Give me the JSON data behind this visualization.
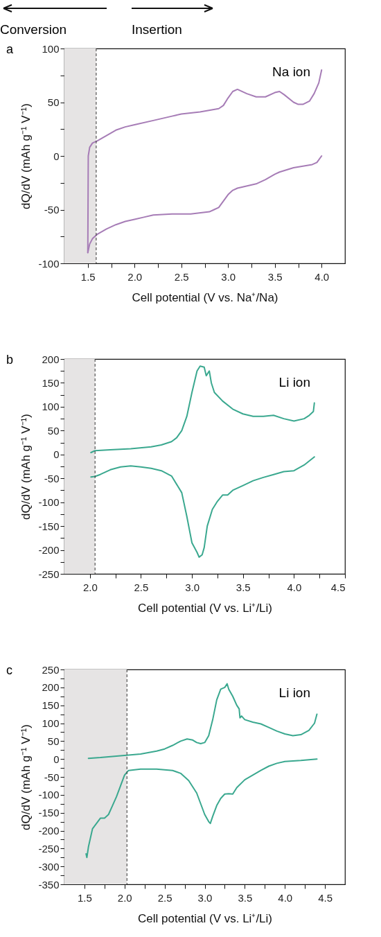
{
  "chart_data": [
    {
      "type": "line",
      "xlabel": "Cell potential (V vs. Na⁺/Na)",
      "ylabel": "dQ/dV (mAh g⁻¹ V⁻¹)",
      "annotations": [
        "a",
        "Na ion",
        "Conversion",
        "Insertion"
      ],
      "xlim": [
        1.25,
        4.25
      ],
      "ylim": [
        -100,
        100
      ],
      "xticks": [
        {
          "value": 1.5,
          "label": "1.5"
        },
        {
          "value": 1.75,
          "label": null
        },
        {
          "value": 2,
          "label": "2.0"
        },
        {
          "value": 2.25,
          "label": null
        },
        {
          "value": 2.5,
          "label": "2.5"
        },
        {
          "value": 2.75,
          "label": null
        },
        {
          "value": 3,
          "label": "3.0"
        },
        {
          "value": 3.25,
          "label": null
        },
        {
          "value": 3.5,
          "label": "3.5"
        },
        {
          "value": 3.75,
          "label": null
        },
        {
          "value": 4,
          "label": "4.0"
        }
      ],
      "yticks": [
        -100,
        {
          "value": -75,
          "label": null
        },
        -50,
        {
          "value": -25,
          "label": null
        },
        0,
        {
          "value": 25,
          "label": null
        },
        50,
        {
          "value": 75,
          "label": null
        },
        100
      ],
      "bands": [
        {
          "axis": "x",
          "from": 1.25,
          "to": 1.59,
          "color": "#e6e4e4"
        }
      ],
      "ref_lines": [
        {
          "axis": "x",
          "value": 1.59,
          "line_style": "dashed",
          "color": "#333333"
        }
      ],
      "series": [
        {
          "color": "#a67cb6",
          "x": [
            1.5,
            1.505,
            1.52,
            1.55,
            1.6,
            1.7,
            1.8,
            1.9,
            2.0,
            2.2,
            2.4,
            2.5,
            2.7,
            2.9,
            2.95,
            3.0,
            3.05,
            3.1,
            3.2,
            3.3,
            3.4,
            3.5,
            3.55,
            3.6,
            3.7,
            3.75,
            3.8,
            3.87,
            3.92,
            3.97,
            4.0
          ],
          "values": [
            -90,
            0,
            8,
            12,
            14,
            19,
            24,
            27,
            29,
            33,
            37,
            39,
            41,
            44,
            47,
            54,
            60,
            62,
            58,
            55,
            55,
            59,
            60,
            57,
            50,
            48,
            48,
            51,
            58,
            68,
            80
          ]
        },
        {
          "color": "#a67cb6",
          "x": [
            1.5,
            1.52,
            1.55,
            1.6,
            1.7,
            1.8,
            1.9,
            2.0,
            2.1,
            2.2,
            2.4,
            2.6,
            2.8,
            2.85,
            2.9,
            2.95,
            3.0,
            3.05,
            3.1,
            3.3,
            3.4,
            3.5,
            3.55,
            3.7,
            3.9,
            3.95,
            4.0
          ],
          "values": [
            -90,
            -82,
            -77,
            -73,
            -68,
            -64,
            -61,
            -59,
            -57,
            -55,
            -54,
            -54,
            -52,
            -50,
            -48,
            -42,
            -36,
            -32,
            -30,
            -26,
            -22,
            -17,
            -15,
            -11,
            -8,
            -6,
            0
          ]
        }
      ]
    },
    {
      "type": "line",
      "xlabel": "Cell potential (V vs. Li⁺/Li)",
      "ylabel": "dQ/dV (mAh g⁻¹ V⁻¹)",
      "annotations": [
        "b",
        "Li ion"
      ],
      "xlim": [
        1.75,
        4.5
      ],
      "ylim": [
        -250,
        200
      ],
      "xticks": [
        {
          "value": 2,
          "label": "2.0"
        },
        {
          "value": 2.25,
          "label": null
        },
        {
          "value": 2.5,
          "label": "2.5"
        },
        {
          "value": 2.75,
          "label": null
        },
        {
          "value": 3,
          "label": "3.0"
        },
        {
          "value": 3.25,
          "label": null
        },
        {
          "value": 3.5,
          "label": "3.5"
        },
        {
          "value": 3.75,
          "label": null
        },
        {
          "value": 4,
          "label": "4.0"
        },
        {
          "value": 4.25,
          "label": null
        },
        {
          "value": 4.5,
          "label": "4.5"
        }
      ],
      "yticks": [
        -250,
        {
          "value": -225,
          "label": null
        },
        -200,
        {
          "value": -175,
          "label": null
        },
        -150,
        {
          "value": -125,
          "label": null
        },
        -100,
        {
          "value": -75,
          "label": null
        },
        -50,
        {
          "value": -25,
          "label": null
        },
        0,
        {
          "value": 25,
          "label": null
        },
        50,
        {
          "value": 75,
          "label": null
        },
        100,
        {
          "value": 125,
          "label": null
        },
        150,
        {
          "value": 175,
          "label": null
        },
        200
      ],
      "bands": [
        {
          "axis": "x",
          "from": 1.75,
          "to": 2.05,
          "color": "#e6e4e4"
        }
      ],
      "ref_lines": [
        {
          "axis": "x",
          "value": 2.05,
          "line_style": "dashed",
          "color": "#333333"
        }
      ],
      "series": [
        {
          "color": "#3aa88f",
          "x": [
            2.01,
            2.05,
            2.2,
            2.4,
            2.6,
            2.7,
            2.8,
            2.85,
            2.9,
            2.95,
            3.0,
            3.05,
            3.08,
            3.12,
            3.14,
            3.17,
            3.19,
            3.22,
            3.3,
            3.4,
            3.5,
            3.6,
            3.7,
            3.8,
            3.9,
            4.0,
            4.1,
            4.15,
            4.19,
            4.2
          ],
          "values": [
            4,
            8,
            10,
            12,
            16,
            20,
            27,
            35,
            50,
            80,
            130,
            175,
            185,
            183,
            165,
            175,
            150,
            130,
            112,
            95,
            85,
            80,
            80,
            82,
            75,
            70,
            75,
            82,
            90,
            108
          ]
        },
        {
          "color": "#3aa88f",
          "x": [
            2.01,
            2.05,
            2.1,
            2.2,
            2.3,
            2.4,
            2.5,
            2.6,
            2.7,
            2.8,
            2.9,
            2.95,
            3.0,
            3.05,
            3.07,
            3.1,
            3.12,
            3.15,
            3.2,
            3.25,
            3.3,
            3.35,
            3.4,
            3.5,
            3.6,
            3.7,
            3.8,
            3.9,
            4.0,
            4.1,
            4.2
          ],
          "values": [
            -47,
            -46,
            -42,
            -32,
            -26,
            -24,
            -26,
            -29,
            -34,
            -45,
            -80,
            -130,
            -185,
            -205,
            -215,
            -210,
            -195,
            -150,
            -115,
            -98,
            -85,
            -85,
            -75,
            -65,
            -55,
            -48,
            -42,
            -36,
            -34,
            -22,
            -5
          ]
        }
      ]
    },
    {
      "type": "line",
      "xlabel": "Cell potential (V vs. Li⁺/Li)",
      "ylabel": "dQ/dV (mAh g⁻¹ V⁻¹)",
      "annotations": [
        "c",
        "Li ion"
      ],
      "xlim": [
        1.25,
        4.75
      ],
      "ylim": [
        -350,
        250
      ],
      "xticks": [
        {
          "value": 1.5,
          "label": "1.5"
        },
        {
          "value": 1.75,
          "label": null
        },
        {
          "value": 2,
          "label": "2.0"
        },
        {
          "value": 2.25,
          "label": null
        },
        {
          "value": 2.5,
          "label": "2.5"
        },
        {
          "value": 2.75,
          "label": null
        },
        {
          "value": 3,
          "label": "3.0"
        },
        {
          "value": 3.25,
          "label": null
        },
        {
          "value": 3.5,
          "label": "3.5"
        },
        {
          "value": 3.75,
          "label": null
        },
        {
          "value": 4,
          "label": "4.0"
        },
        {
          "value": 4.25,
          "label": null
        },
        {
          "value": 4.5,
          "label": "4.5"
        }
      ],
      "yticks": [
        -350,
        {
          "value": -325,
          "label": null
        },
        -300,
        {
          "value": -275,
          "label": null
        },
        -250,
        {
          "value": -225,
          "label": null
        },
        -200,
        {
          "value": -175,
          "label": null
        },
        -150,
        {
          "value": -125,
          "label": null
        },
        -100,
        {
          "value": -75,
          "label": null
        },
        -50,
        {
          "value": -25,
          "label": null
        },
        0,
        {
          "value": 25,
          "label": null
        },
        50,
        {
          "value": 75,
          "label": null
        },
        100,
        {
          "value": 125,
          "label": null
        },
        150,
        {
          "value": 175,
          "label": null
        },
        200,
        {
          "value": 225,
          "label": null
        },
        250
      ],
      "bands": [
        {
          "axis": "x",
          "from": 1.25,
          "to": 2.03,
          "color": "#e6e4e4"
        }
      ],
      "ref_lines": [
        {
          "axis": "x",
          "value": 2.03,
          "line_style": "dashed",
          "color": "#333333"
        }
      ],
      "series": [
        {
          "color": "#3aa88f",
          "x": [
            1.55,
            1.7,
            1.9,
            2.0,
            2.2,
            2.4,
            2.5,
            2.6,
            2.7,
            2.78,
            2.85,
            2.9,
            2.95,
            3.0,
            3.05,
            3.1,
            3.15,
            3.2,
            3.25,
            3.28,
            3.3,
            3.35,
            3.4,
            3.43,
            3.44,
            3.46,
            3.5,
            3.6,
            3.7,
            3.8,
            3.9,
            4.0,
            4.1,
            4.2,
            4.3,
            4.37,
            4.4
          ],
          "values": [
            2,
            4,
            8,
            10,
            14,
            22,
            28,
            38,
            50,
            56,
            53,
            46,
            43,
            46,
            65,
            110,
            165,
            195,
            200,
            210,
            195,
            175,
            150,
            140,
            115,
            120,
            110,
            103,
            98,
            88,
            78,
            70,
            65,
            68,
            80,
            100,
            125
          ]
        },
        {
          "color": "#3aa88f",
          "x": [
            1.52,
            1.53,
            1.55,
            1.58,
            1.6,
            1.65,
            1.7,
            1.75,
            1.8,
            1.85,
            1.9,
            1.95,
            2.0,
            2.05,
            2.2,
            2.4,
            2.6,
            2.7,
            2.8,
            2.9,
            2.95,
            3.0,
            3.05,
            3.07,
            3.1,
            3.15,
            3.2,
            3.25,
            3.3,
            3.35,
            3.4,
            3.5,
            3.6,
            3.7,
            3.8,
            3.9,
            4.0,
            4.2,
            4.4
          ],
          "values": [
            -265,
            -275,
            -245,
            -215,
            -195,
            -180,
            -165,
            -165,
            -155,
            -130,
            -105,
            -75,
            -45,
            -32,
            -28,
            -28,
            -32,
            -40,
            -60,
            -95,
            -125,
            -155,
            -175,
            -180,
            -160,
            -130,
            -110,
            -98,
            -97,
            -98,
            -80,
            -58,
            -45,
            -32,
            -20,
            -12,
            -7,
            -4,
            0
          ]
        }
      ]
    }
  ]
}
